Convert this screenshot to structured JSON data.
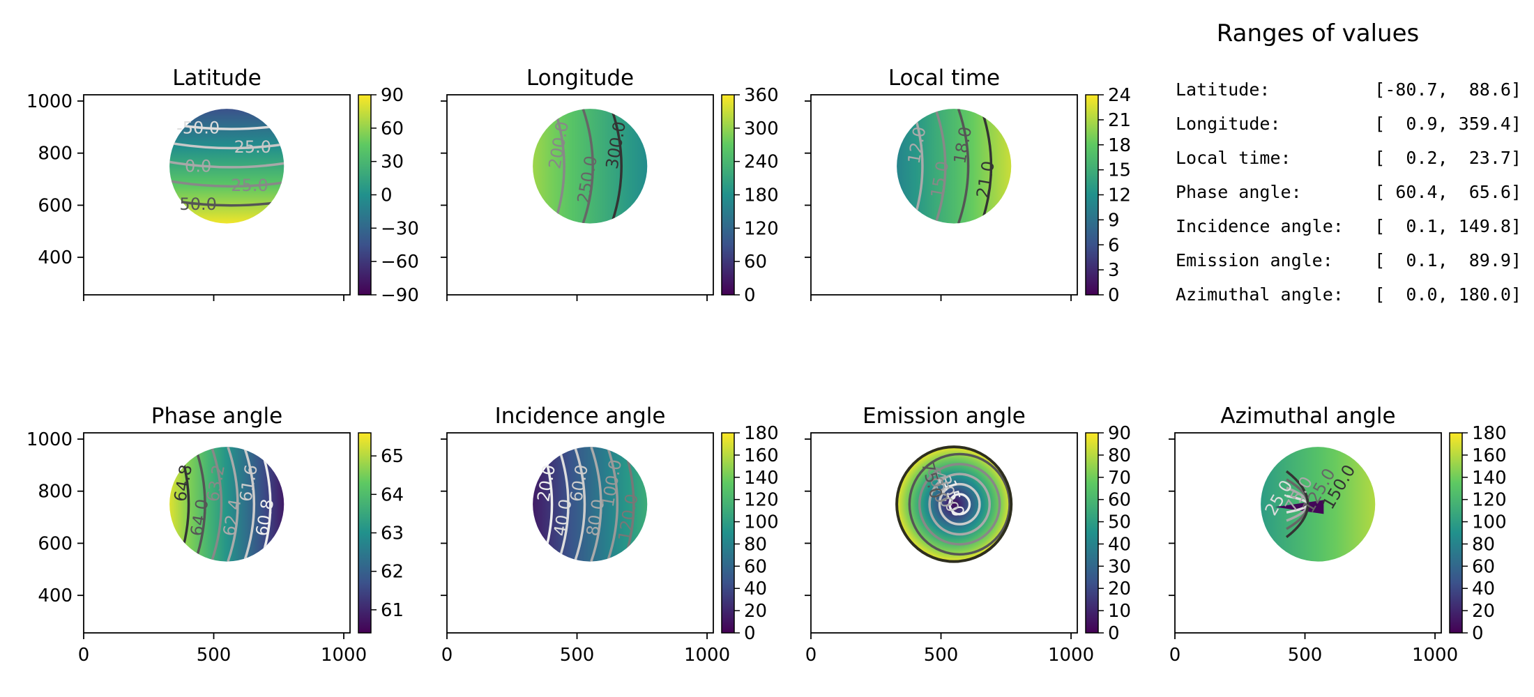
{
  "ranges": {
    "title": "Ranges of values",
    "rows": [
      {
        "label": "Latitude:",
        "value": "[-80.7,  88.6]"
      },
      {
        "label": "Longitude:",
        "value": "[  0.9, 359.4]"
      },
      {
        "label": "Local time:",
        "value": "[  0.2,  23.7]"
      },
      {
        "label": "Phase angle:",
        "value": "[ 60.4,  65.6]"
      },
      {
        "label": "Incidence angle:",
        "value": "[  0.1, 149.8]"
      },
      {
        "label": "Emission angle:",
        "value": "[  0.1,  89.9]"
      },
      {
        "label": "Azimuthal angle:",
        "value": "[  0.0, 180.0]"
      }
    ]
  },
  "chart_data": [
    {
      "type": "heatmap",
      "title": "Latitude",
      "xlim": [
        0,
        1024
      ],
      "ylim": [
        256,
        1024
      ],
      "yticks": [
        "400",
        "600",
        "800",
        "1000"
      ],
      "xticks": [],
      "disk": {
        "cx": 550,
        "cy": 750,
        "r": 220
      },
      "colorbar": {
        "min": -90,
        "max": 90,
        "ticks": [
          "−90",
          "−60",
          "−30",
          "0",
          "30",
          "60",
          "90"
        ]
      },
      "contours": [
        {
          "label": "-50.0",
          "color": "#dddddd"
        },
        {
          "label": "-25.0",
          "color": "#c8c8c8"
        },
        {
          "label": "0.0",
          "color": "#a8a8a8"
        },
        {
          "label": "25.0",
          "color": "#888888"
        },
        {
          "label": "50.0",
          "color": "#555555"
        }
      ]
    },
    {
      "type": "heatmap",
      "title": "Longitude",
      "xlim": [
        0,
        1024
      ],
      "ylim": [
        256,
        1024
      ],
      "yticks": [],
      "xticks": [],
      "disk": {
        "cx": 550,
        "cy": 750,
        "r": 220
      },
      "colorbar": {
        "min": 0,
        "max": 360,
        "ticks": [
          "0",
          "60",
          "120",
          "180",
          "240",
          "300",
          "360"
        ]
      },
      "contours": [
        {
          "label": "200.0",
          "color": "#888888"
        },
        {
          "label": "250.0",
          "color": "#666666"
        },
        {
          "label": "300.0",
          "color": "#333333"
        }
      ]
    },
    {
      "type": "heatmap",
      "title": "Local time",
      "xlim": [
        0,
        1024
      ],
      "ylim": [
        256,
        1024
      ],
      "yticks": [],
      "xticks": [],
      "disk": {
        "cx": 550,
        "cy": 750,
        "r": 220
      },
      "colorbar": {
        "min": 0,
        "max": 24,
        "ticks": [
          "0",
          "3",
          "6",
          "9",
          "12",
          "15",
          "18",
          "21",
          "24"
        ]
      },
      "contours": [
        {
          "label": "12.0",
          "color": "#aaaaaa"
        },
        {
          "label": "15.0",
          "color": "#888888"
        },
        {
          "label": "18.0",
          "color": "#555555"
        },
        {
          "label": "21.0",
          "color": "#333333"
        }
      ]
    },
    {
      "type": "heatmap",
      "title": "Phase angle",
      "xlim": [
        0,
        1024
      ],
      "ylim": [
        256,
        1024
      ],
      "yticks": [
        "400",
        "600",
        "800",
        "1000"
      ],
      "xticks": [
        "0",
        "500",
        "1000"
      ],
      "disk": {
        "cx": 550,
        "cy": 750,
        "r": 220
      },
      "colorbar": {
        "min": 60.4,
        "max": 65.6,
        "ticks": [
          "61",
          "62",
          "63",
          "64",
          "65"
        ]
      },
      "contours": [
        {
          "label": "64.8",
          "color": "#333333"
        },
        {
          "label": "64.0",
          "color": "#555555"
        },
        {
          "label": "63.2",
          "color": "#888888"
        },
        {
          "label": "62.4",
          "color": "#aaaaaa"
        },
        {
          "label": "61.6",
          "color": "#cccccc"
        },
        {
          "label": "60.8",
          "color": "#eeeeee"
        }
      ]
    },
    {
      "type": "heatmap",
      "title": "Incidence angle",
      "xlim": [
        0,
        1024
      ],
      "ylim": [
        256,
        1024
      ],
      "yticks": [],
      "xticks": [
        "0",
        "500",
        "1000"
      ],
      "disk": {
        "cx": 550,
        "cy": 750,
        "r": 220
      },
      "colorbar": {
        "min": 0,
        "max": 180,
        "ticks": [
          "0",
          "20",
          "40",
          "60",
          "80",
          "100",
          "120",
          "140",
          "160",
          "180"
        ]
      },
      "contours": [
        {
          "label": "20.0",
          "color": "#eeeeee"
        },
        {
          "label": "40.0",
          "color": "#dddddd"
        },
        {
          "label": "60.0",
          "color": "#cccccc"
        },
        {
          "label": "80.0",
          "color": "#aaaaaa"
        },
        {
          "label": "100.0",
          "color": "#999999"
        },
        {
          "label": "120.0",
          "color": "#777777"
        }
      ]
    },
    {
      "type": "heatmap",
      "title": "Emission angle",
      "xlim": [
        0,
        1024
      ],
      "ylim": [
        256,
        1024
      ],
      "yticks": [],
      "xticks": [
        "0",
        "500",
        "1000"
      ],
      "disk": {
        "cx": 550,
        "cy": 750,
        "r": 220
      },
      "colorbar": {
        "min": 0,
        "max": 90,
        "ticks": [
          "0",
          "10",
          "20",
          "30",
          "40",
          "50",
          "60",
          "70",
          "80",
          "90"
        ]
      },
      "contours": [
        {
          "label": "15.0",
          "color": "#eeeeee"
        },
        {
          "label": "30.0",
          "color": "#cccccc"
        },
        {
          "label": "45.0",
          "color": "#aaaaaa"
        },
        {
          "label": "60.0",
          "color": "#888888"
        },
        {
          "label": "75.0",
          "color": "#555555"
        }
      ]
    },
    {
      "type": "heatmap",
      "title": "Azimuthal angle",
      "xlim": [
        0,
        1024
      ],
      "ylim": [
        256,
        1024
      ],
      "yticks": [],
      "xticks": [
        "0",
        "500",
        "1000"
      ],
      "disk": {
        "cx": 550,
        "cy": 750,
        "r": 220
      },
      "colorbar": {
        "min": 0,
        "max": 180,
        "ticks": [
          "0",
          "20",
          "40",
          "60",
          "80",
          "100",
          "120",
          "140",
          "160",
          "180"
        ]
      },
      "contours": [
        {
          "label": "25.0",
          "color": "#dddddd"
        },
        {
          "label": "75.0",
          "color": "#aaaaaa"
        },
        {
          "label": "125.0",
          "color": "#666666"
        },
        {
          "label": "150.0",
          "color": "#333333"
        }
      ]
    }
  ]
}
